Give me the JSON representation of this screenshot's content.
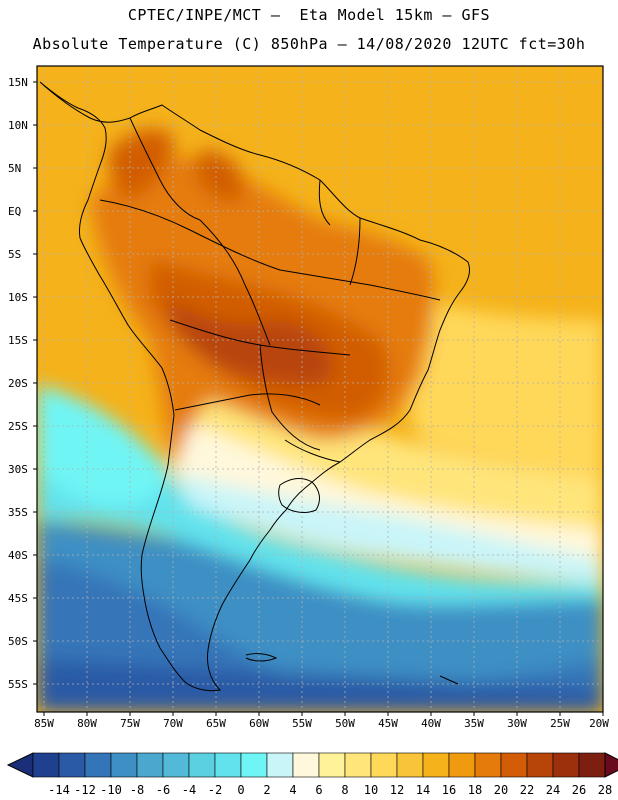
{
  "header": {
    "line1": "CPTEC/INPE/MCT –  Eta Model 15km – GFS",
    "line2": "Absolute Temperature (C) 850hPa – 14/08/2020 12UTC fct=30h"
  },
  "axes": {
    "lat_labels": [
      "15N",
      "10N",
      "5N",
      "EQ",
      "5S",
      "10S",
      "15S",
      "20S",
      "25S",
      "30S",
      "35S",
      "40S",
      "45S",
      "50S",
      "55S"
    ],
    "lon_labels": [
      "85W",
      "80W",
      "75W",
      "70W",
      "65W",
      "60W",
      "55W",
      "50W",
      "45W",
      "40W",
      "35W",
      "30W",
      "25W",
      "20W"
    ]
  },
  "colorbar": {
    "labels": [
      "-14",
      "-12",
      "-10",
      "-8",
      "-6",
      "-4",
      "-2",
      "0",
      "2",
      "4",
      "6",
      "8",
      "10",
      "12",
      "14",
      "16",
      "18",
      "20",
      "22",
      "24",
      "26",
      "28"
    ],
    "colors": [
      "#1f3f8f",
      "#2a5aa6",
      "#3474b8",
      "#3d8fc4",
      "#4aa8cf",
      "#52bad8",
      "#5ad0e0",
      "#62e2ec",
      "#6ff5f5",
      "#c9f5f9",
      "#fff8dc",
      "#fff39a",
      "#ffe57a",
      "#ffd85a",
      "#f8c53a",
      "#f5b21a",
      "#f09a10",
      "#e57b0a",
      "#d25d06",
      "#b84508",
      "#9c300c",
      "#7d1f10"
    ],
    "low_arrow_color": "#1a2f78",
    "high_arrow_color": "#6a0a1e"
  }
}
